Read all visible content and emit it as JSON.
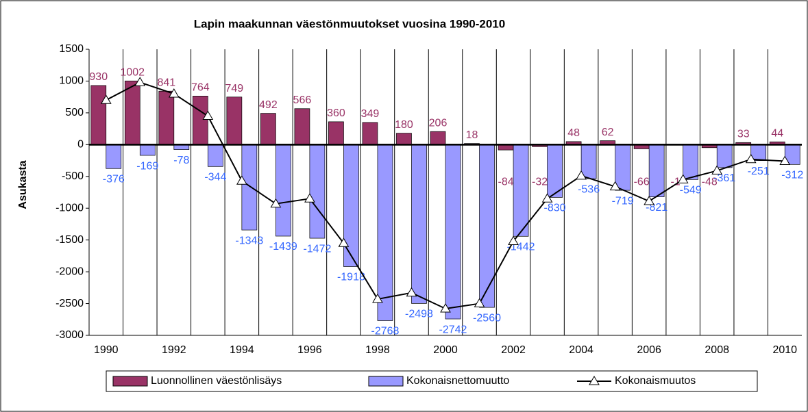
{
  "chart_data": {
    "type": "bar",
    "title": "Lapin maakunnan väestönmuutokset vuosina 1990-2010",
    "y_label": "Asukasta",
    "categories": [
      "1990",
      null,
      "1992",
      null,
      "1994",
      null,
      "1996",
      null,
      "1998",
      null,
      "2000",
      null,
      "2002",
      null,
      "2004",
      null,
      "2006",
      null,
      "2008",
      null,
      "2010"
    ],
    "series": [
      {
        "name": "Luonnollinen väestönlisäys",
        "type": "bar",
        "color": "#993366",
        "label_color": "#993366",
        "values": [
          930,
          1002,
          841,
          764,
          749,
          492,
          566,
          360,
          349,
          180,
          206,
          18,
          -84,
          -32,
          48,
          62,
          -66,
          -1,
          -48,
          33,
          44
        ]
      },
      {
        "name": "Kokonaisnettomuutto",
        "type": "bar",
        "color": "#9999ff",
        "label_color": "#3366ff",
        "values": [
          -376,
          -169,
          -78,
          -344,
          -1343,
          -1439,
          -1472,
          -1918,
          -2768,
          -2498,
          -2742,
          -2560,
          -1442,
          -830,
          -536,
          -719,
          -821,
          -549,
          -361,
          -251,
          -312
        ]
      },
      {
        "name": "Kokonaismuutos",
        "type": "line",
        "color": "#000000",
        "values": [
          700,
          980,
          800,
          450,
          -570,
          -930,
          -850,
          -1550,
          -2430,
          -2330,
          -2580,
          -2500,
          -1520,
          -850,
          -490,
          -660,
          -890,
          -550,
          -410,
          -230,
          -260
        ]
      }
    ],
    "ylim": [
      -3000,
      1500
    ],
    "yticks": [
      -3000,
      -2500,
      -2000,
      -1500,
      -1000,
      -500,
      0,
      500,
      1000,
      1500
    ]
  }
}
